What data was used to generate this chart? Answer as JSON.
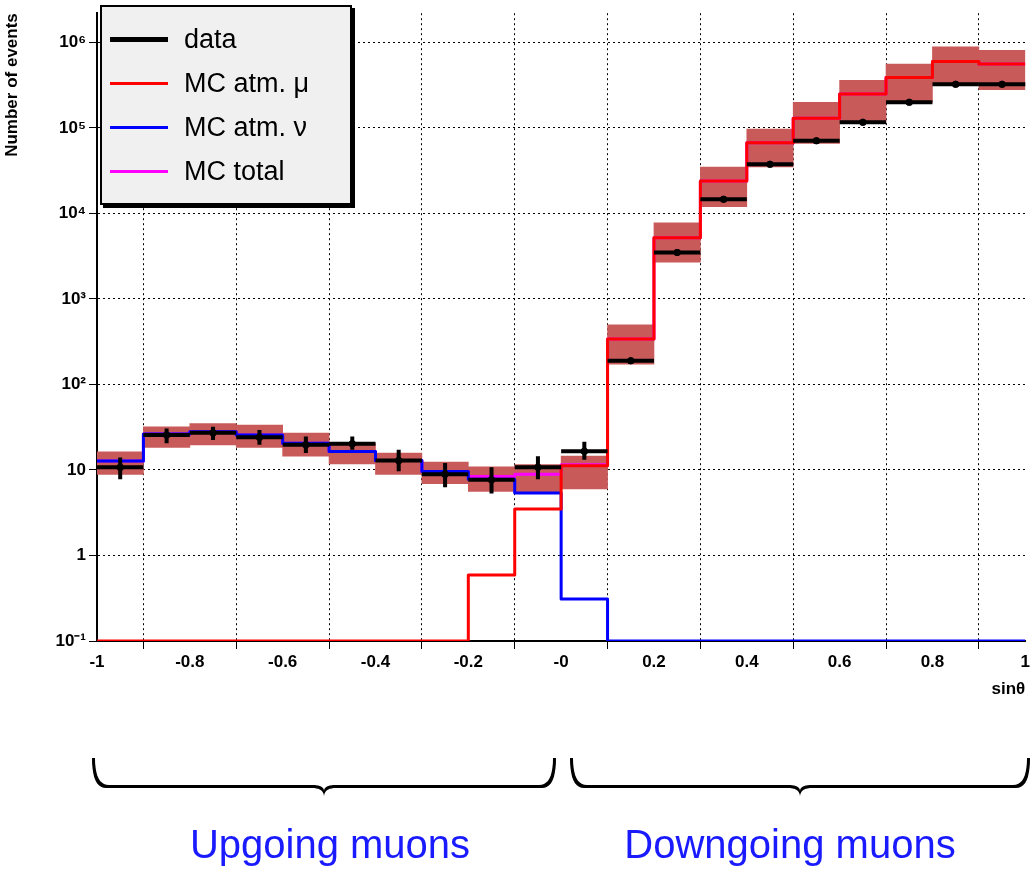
{
  "chart_data": {
    "type": "histogram",
    "xlabel": "sinθ",
    "ylabel": "Number of events",
    "log": "y",
    "grid": true,
    "legend": "top left",
    "bins": [
      -1,
      -0.9,
      -0.8,
      -0.7,
      -0.6,
      -0.5,
      -0.4,
      -0.3,
      -0.2,
      -0.1,
      0,
      0.1,
      0.2,
      0.3,
      0.4,
      0.5,
      0.6,
      0.7,
      0.8,
      0.9,
      1
    ],
    "xlim": [
      -1,
      1
    ],
    "xticks": [
      -1,
      -0.8,
      -0.6,
      -0.4,
      -0.2,
      {
        "value": 0,
        "label": "-0"
      },
      0.2,
      0.4,
      0.6,
      0.8,
      1
    ],
    "ylim": [
      0.1,
      2200000
    ],
    "yticks": [
      {
        "value": 0.1,
        "label": "10⁻¹"
      },
      1,
      10,
      {
        "value": 100,
        "label": "10²"
      },
      {
        "value": 1000,
        "label": "10³"
      },
      {
        "value": 10000,
        "label": "10⁴"
      },
      {
        "value": 100000,
        "label": "10⁵"
      },
      {
        "value": 1000000,
        "label": "10⁶"
      }
    ],
    "series": [
      {
        "name": "data",
        "type": "scatter",
        "color": "#000000",
        "x": [
          -0.95,
          -0.85,
          -0.75,
          -0.65,
          -0.55,
          -0.45,
          -0.35,
          -0.25,
          -0.15,
          -0.05,
          0.05,
          0.15,
          0.25,
          0.35,
          0.45,
          0.55,
          0.65,
          0.75,
          0.85,
          0.95
        ],
        "values": [
          10.8,
          25.7,
          27.3,
          24.1,
          19.8,
          20.3,
          12.9,
          8.9,
          7.7,
          10.8,
          16.6,
          189,
          3500,
          14700,
          37700,
          71000,
          117000,
          200000,
          325000,
          325000
        ],
        "xerrors": [
          0.05,
          0.05,
          0.05,
          0.05,
          0.05,
          0.05,
          0.05,
          0.05,
          0.05,
          0.05,
          0.05,
          0.05,
          0.05,
          0.05,
          0.05,
          0.05,
          0.05,
          0.05,
          0.05,
          0.05
        ],
        "errors": [
          [
            7.8,
            14
          ],
          [
            20.6,
            30.6
          ],
          [
            22.5,
            32
          ],
          [
            19.8,
            29.3
          ],
          [
            15.8,
            24.6
          ],
          [
            17.3,
            24.6
          ],
          [
            9.7,
            17.3
          ],
          [
            6.3,
            12.1
          ],
          [
            5.3,
            10.8
          ],
          [
            7.8,
            14.5
          ],
          [
            13.2,
            21.4
          ],
          null,
          null,
          null,
          null,
          null,
          null,
          null,
          null,
          null
        ]
      },
      {
        "name": "MC atm. μ",
        "type": "histogram",
        "color": "#ff0000",
        "values": [
          0.1,
          0.1,
          0.1,
          0.1,
          0.1,
          0.1,
          0.1,
          0.1,
          0.59,
          3.5,
          11.2,
          340,
          5200,
          24000,
          67000,
          130000,
          250000,
          390000,
          600000,
          560000
        ]
      },
      {
        "name": "MC atm. ν",
        "type": "histogram",
        "color": "#0000ff",
        "values": [
          12.7,
          26.4,
          28,
          25.7,
          20.6,
          16.5,
          12.9,
          9.6,
          7.8,
          5.4,
          0.31,
          0.1,
          0.1,
          0.1,
          0.1,
          0.1,
          0.1,
          0.1,
          0.1,
          0.1
        ]
      },
      {
        "name": "MC total",
        "type": "histogram",
        "color": "#ff00ff",
        "values": [
          12.7,
          26.4,
          28,
          25.7,
          20.6,
          16.5,
          12.9,
          9.6,
          8.4,
          8.9,
          11.5,
          340,
          5200,
          24000,
          67000,
          130000,
          250000,
          390000,
          600000,
          560000
        ]
      },
      {
        "type": "bar",
        "color": "#c95a5a",
        "x": [
          -0.95,
          -0.85,
          -0.75,
          -0.65,
          -0.55,
          -0.45,
          -0.35,
          -0.25,
          -0.15,
          -0.05,
          0.05,
          0.15,
          0.25,
          0.35,
          0.45,
          0.55,
          0.65,
          0.75,
          0.85,
          0.95
        ],
        "base": [
          8.9,
          18.4,
          19.7,
          18.4,
          14.5,
          11.8,
          8.9,
          6.9,
          5.6,
          5.5,
          6.0,
          173,
          2700,
          12000,
          35000,
          66000,
          115000,
          200000,
          330000,
          280000
        ],
        "values": [
          7.4,
          13.6,
          15.3,
          15.1,
          12.5,
          8.8,
          6.9,
          5.5,
          5.3,
          6.1,
          8.5,
          327,
          5100,
          23000,
          62000,
          134000,
          245000,
          360000,
          560000,
          530000
        ]
      }
    ],
    "annotations": [
      "Upgoing muons",
      "Downgoing muons"
    ]
  }
}
